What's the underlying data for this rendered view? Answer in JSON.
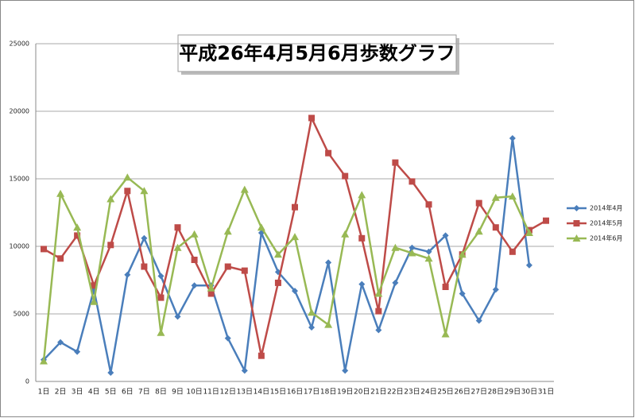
{
  "chart_data": {
    "type": "line",
    "title": "平成26年4月5月6月歩数グラフ",
    "categories": [
      "1日",
      "2日",
      "3日",
      "4日",
      "5日",
      "6日",
      "7日",
      "8日",
      "9日",
      "10日",
      "11日",
      "12日",
      "13日",
      "14日",
      "15日",
      "16日",
      "17日",
      "18日",
      "19日",
      "20日",
      "21日",
      "22日",
      "23日",
      "24日",
      "25日",
      "26日",
      "27日",
      "28日",
      "29日",
      "30日",
      "31日"
    ],
    "series": [
      {
        "name": "2014年4月",
        "color": "#4a7ebb",
        "marker": "diamond",
        "values": [
          1600,
          2900,
          2200,
          6800,
          650,
          7900,
          10600,
          7800,
          4800,
          7100,
          7100,
          3200,
          800,
          11000,
          8100,
          6700,
          4000,
          8800,
          800,
          7200,
          3800,
          7300,
          9900,
          9600,
          10800,
          6500,
          4500,
          6800,
          18000,
          8600,
          null
        ]
      },
      {
        "name": "2014年5月",
        "color": "#be4b48",
        "marker": "square",
        "values": [
          9800,
          9100,
          10800,
          7100,
          10100,
          14100,
          8500,
          6200,
          11400,
          9000,
          6500,
          8500,
          8200,
          1900,
          7300,
          12900,
          19500,
          16900,
          15200,
          10600,
          5200,
          16200,
          14800,
          13100,
          7000,
          9400,
          13200,
          11400,
          9600,
          11200,
          11900
        ]
      },
      {
        "name": "2014年6月",
        "color": "#98b954",
        "marker": "triangle",
        "values": [
          1500,
          13900,
          11400,
          5900,
          13500,
          15100,
          14100,
          3600,
          9900,
          10900,
          6900,
          11100,
          14200,
          11400,
          9400,
          10700,
          5100,
          4200,
          10900,
          13800,
          6500,
          9900,
          9500,
          9100,
          3500,
          9400,
          11100,
          13600,
          13700,
          11000,
          null
        ]
      }
    ],
    "ylim": [
      0,
      25000
    ],
    "yticks": [
      0,
      5000,
      10000,
      15000,
      20000,
      25000
    ],
    "grid": true,
    "legend": "right"
  }
}
